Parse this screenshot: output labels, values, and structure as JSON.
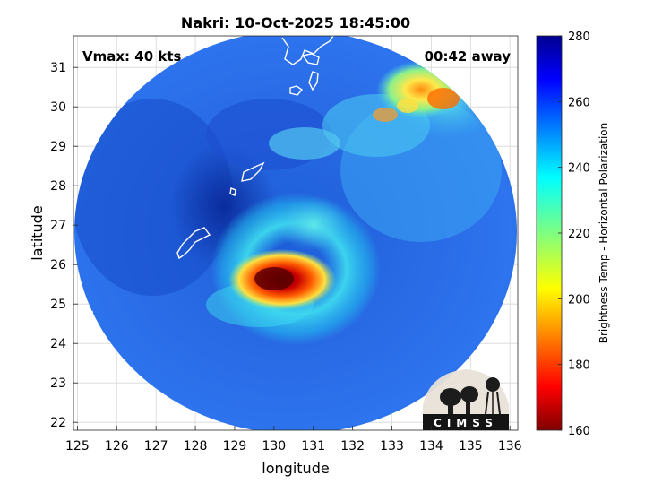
{
  "title": "Nakri: 10-Oct-2025 18:45:00",
  "vmax_label": "Vmax: 40 kts",
  "time_label": "00:42 away",
  "xlabel": "longitude",
  "ylabel": "latitude",
  "colorbar_label": "Brightness Temp - Horizontal Polarization",
  "logo_text": "CIMSS",
  "chart_data": {
    "type": "heatmap",
    "title": "Nakri: 10-Oct-2025 18:45:00",
    "xlabel": "longitude",
    "ylabel": "latitude",
    "xlim": [
      124.9,
      136.2
    ],
    "ylim": [
      21.8,
      31.8
    ],
    "xticks": [
      125,
      126,
      127,
      128,
      129,
      130,
      131,
      132,
      133,
      134,
      135,
      136
    ],
    "yticks": [
      22,
      23,
      24,
      25,
      26,
      27,
      28,
      29,
      30,
      31
    ],
    "grid": true,
    "colorbar": {
      "label": "Brightness Temp - Horizontal Polarization",
      "range": [
        160,
        280
      ],
      "ticks": [
        160,
        180,
        200,
        220,
        240,
        260,
        280
      ],
      "colormap": "jet (reversed: warm colors = cold brightness temps)"
    },
    "swath": {
      "shape": "circle",
      "center_lon": 130.5,
      "center_lat": 26.75,
      "approx_min_temp": 280,
      "approx_edge_temp": 255
    },
    "features": [
      {
        "name": "storm core",
        "lon": 130.0,
        "lat": 25.6,
        "approx_min_temp": 165
      },
      {
        "name": "convective band NE",
        "lon": 134.5,
        "lat": 30.3,
        "approx_min_temp": 205
      },
      {
        "name": "dry slot",
        "lon": 127.5,
        "lat": 27.2,
        "approx_min_temp": 268
      }
    ],
    "annotations": [
      "Vmax: 40 kts",
      "00:42 away"
    ],
    "coastline_color": "#ffffff"
  }
}
